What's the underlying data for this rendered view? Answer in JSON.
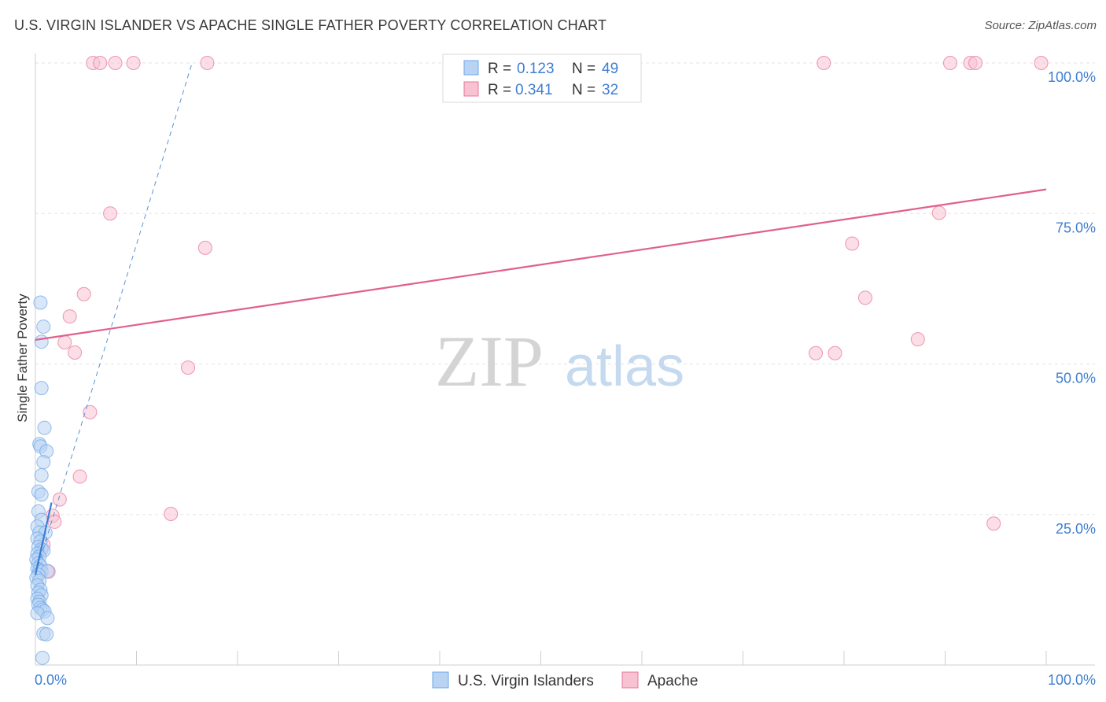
{
  "title": "U.S. VIRGIN ISLANDER VS APACHE SINGLE FATHER POVERTY CORRELATION CHART",
  "source": "Source: ZipAtlas.com",
  "watermark": {
    "zip": "ZIP",
    "atlas": "atlas"
  },
  "chart_data": {
    "type": "scatter",
    "title": "U.S. VIRGIN ISLANDER VS APACHE SINGLE FATHER POVERTY CORRELATION CHART",
    "xlabel": "",
    "ylabel": "Single Father Poverty",
    "xlim": [
      0,
      100
    ],
    "ylim": [
      0,
      100
    ],
    "x_tick_labels": [
      "0.0%",
      "100.0%"
    ],
    "y_ticks": [
      25,
      50,
      75,
      100
    ],
    "y_tick_labels": [
      "25.0%",
      "50.0%",
      "75.0%",
      "100.0%"
    ],
    "grid": true,
    "legend_position": "top-center",
    "legend": [
      {
        "r_label": "R = ",
        "r_value": "0.123",
        "n_label": "N = ",
        "n_value": "49"
      },
      {
        "r_label": "R = ",
        "r_value": "0.341",
        "n_label": "N = ",
        "n_value": "32"
      }
    ],
    "series": [
      {
        "name": "U.S. Virgin Islanders",
        "color": "#6fa8e8",
        "fill": "#b9d3f3",
        "trend": {
          "x1": 0,
          "y1": 15,
          "x2": 1.6,
          "y2": 27,
          "extended_x2": 15.5,
          "extended_y2": 100,
          "style": "dashed-extension"
        },
        "points": [
          [
            0.5,
            60.2
          ],
          [
            0.8,
            56.2
          ],
          [
            0.6,
            53.7
          ],
          [
            0.6,
            46
          ],
          [
            0.9,
            39.4
          ],
          [
            0.4,
            36.7
          ],
          [
            0.5,
            36.3
          ],
          [
            1.1,
            35.5
          ],
          [
            0.8,
            33.7
          ],
          [
            0.6,
            31.5
          ],
          [
            0.3,
            28.8
          ],
          [
            0.6,
            28.3
          ],
          [
            0.3,
            25.5
          ],
          [
            0.6,
            24.1
          ],
          [
            0.2,
            23
          ],
          [
            0.4,
            22
          ],
          [
            1.0,
            22
          ],
          [
            0.2,
            21
          ],
          [
            0.5,
            20.5
          ],
          [
            0.3,
            19.6
          ],
          [
            0.6,
            19.2
          ],
          [
            0.8,
            19
          ],
          [
            0.2,
            18.5
          ],
          [
            0.4,
            18
          ],
          [
            0.1,
            17.5
          ],
          [
            0.3,
            16.9
          ],
          [
            0.5,
            16.5
          ],
          [
            0.2,
            16
          ],
          [
            0.4,
            15.7
          ],
          [
            0.6,
            15.5
          ],
          [
            1.2,
            15.6
          ],
          [
            0.3,
            15
          ],
          [
            0.1,
            14.5
          ],
          [
            0.4,
            14
          ],
          [
            0.2,
            13.2
          ],
          [
            0.5,
            12.5
          ],
          [
            0.3,
            12
          ],
          [
            0.6,
            11.6
          ],
          [
            0.2,
            11
          ],
          [
            0.4,
            10.5
          ],
          [
            0.3,
            10
          ],
          [
            0.5,
            9.5
          ],
          [
            0.7,
            9.2
          ],
          [
            0.9,
            8.9
          ],
          [
            0.2,
            8.6
          ],
          [
            1.2,
            7.8
          ],
          [
            0.8,
            5.2
          ],
          [
            1.1,
            5.1
          ],
          [
            0.7,
            1.2
          ]
        ]
      },
      {
        "name": "Apache",
        "color": "#e8779d",
        "fill": "#f7c2d2",
        "trend": {
          "x1": 0,
          "y1": 54,
          "x2": 100,
          "y2": 79
        },
        "points": [
          [
            5.7,
            100
          ],
          [
            6.4,
            100
          ],
          [
            7.9,
            100
          ],
          [
            9.7,
            100
          ],
          [
            17,
            100
          ],
          [
            78,
            100
          ],
          [
            90.5,
            100
          ],
          [
            92.5,
            100
          ],
          [
            93,
            100
          ],
          [
            99.5,
            100
          ],
          [
            7.4,
            75
          ],
          [
            16.8,
            69.3
          ],
          [
            89.4,
            75.1
          ],
          [
            80.8,
            70
          ],
          [
            82.1,
            61
          ],
          [
            4.8,
            61.6
          ],
          [
            3.4,
            57.9
          ],
          [
            2.9,
            53.6
          ],
          [
            3.9,
            51.9
          ],
          [
            15.1,
            49.4
          ],
          [
            77.2,
            51.8
          ],
          [
            79.1,
            51.8
          ],
          [
            87.3,
            54.1
          ],
          [
            5.4,
            42
          ],
          [
            4.4,
            31.3
          ],
          [
            2.4,
            27.5
          ],
          [
            13.4,
            25.1
          ],
          [
            1.7,
            24.8
          ],
          [
            1.9,
            23.8
          ],
          [
            94.8,
            23.5
          ],
          [
            0.8,
            20
          ],
          [
            1.3,
            15.5
          ]
        ]
      }
    ]
  }
}
